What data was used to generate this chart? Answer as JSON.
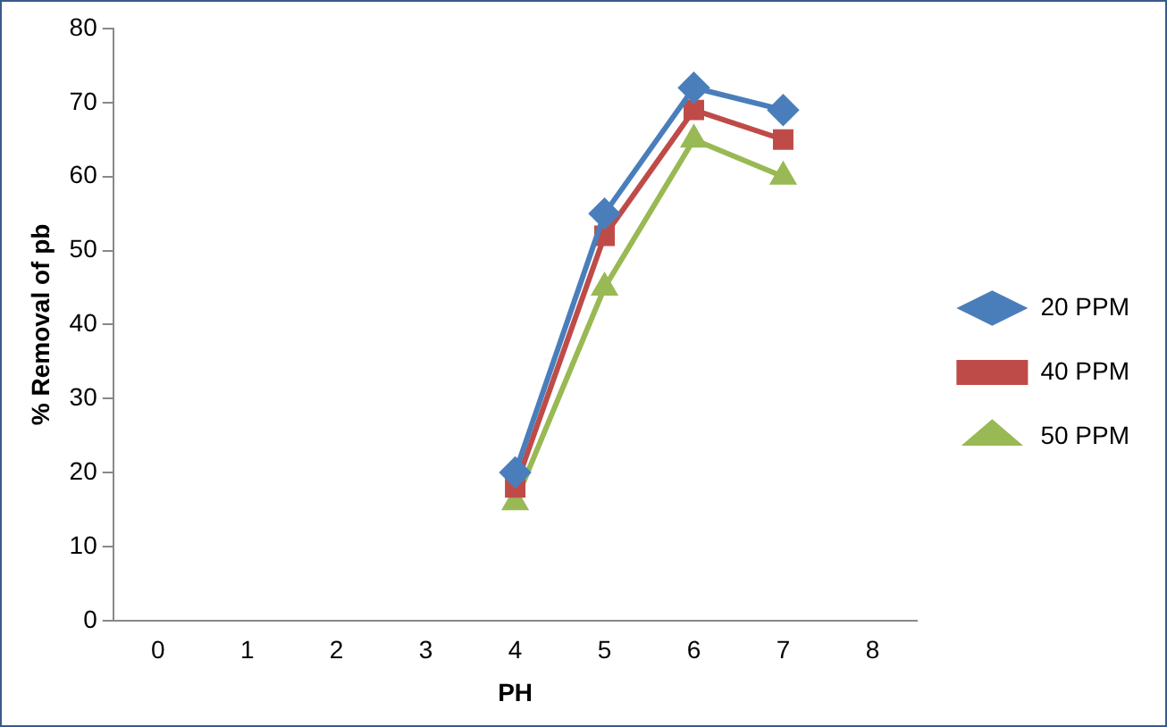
{
  "chart_data": {
    "type": "line",
    "xlabel": "PH",
    "ylabel": "% Removal of pb",
    "categories": [
      "0",
      "1",
      "2",
      "3",
      "4",
      "5",
      "6",
      "7",
      "8"
    ],
    "series": [
      {
        "name": "20 PPM",
        "color": "#4a7ebb",
        "marker": "diamond",
        "values": [
          null,
          null,
          null,
          null,
          20,
          55,
          72,
          69,
          null
        ]
      },
      {
        "name": "40 PPM",
        "color": "#be4b48",
        "marker": "square",
        "values": [
          null,
          null,
          null,
          null,
          18,
          52,
          69,
          65,
          null
        ]
      },
      {
        "name": "50 PPM",
        "color": "#98b954",
        "marker": "triangle",
        "values": [
          null,
          null,
          null,
          null,
          16,
          45,
          65,
          60,
          null
        ]
      }
    ],
    "ylim": [
      0,
      80
    ],
    "yticks": [
      0,
      10,
      20,
      30,
      40,
      50,
      60,
      70,
      80
    ],
    "grid": false,
    "legend": "right"
  }
}
